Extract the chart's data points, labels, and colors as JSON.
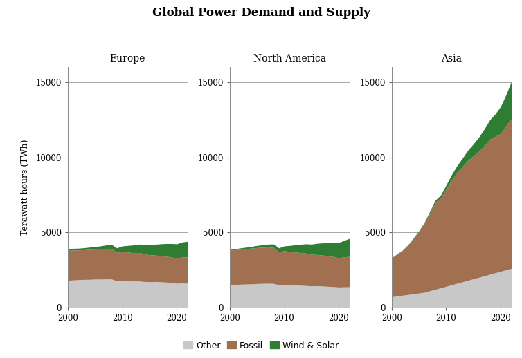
{
  "title": "Global Power Demand and Supply",
  "ylabel": "Terawatt hours (TWh)",
  "regions": [
    "Europe",
    "North America",
    "Asia"
  ],
  "years": [
    2000,
    2001,
    2002,
    2003,
    2004,
    2005,
    2006,
    2007,
    2008,
    2009,
    2010,
    2011,
    2012,
    2013,
    2014,
    2015,
    2016,
    2017,
    2018,
    2019,
    2020,
    2021,
    2022
  ],
  "colors": {
    "Other": "#c8c8c8",
    "Fossil": "#a07050",
    "Wind & Solar": "#2e7d32"
  },
  "data": {
    "Europe": {
      "Other": [
        1800,
        1820,
        1840,
        1860,
        1860,
        1880,
        1880,
        1890,
        1890,
        1760,
        1800,
        1780,
        1760,
        1750,
        1720,
        1700,
        1720,
        1700,
        1680,
        1650,
        1600,
        1620,
        1600
      ],
      "Fossil": [
        2000,
        2000,
        1980,
        1980,
        2000,
        2000,
        2010,
        2030,
        2040,
        1900,
        1920,
        1900,
        1880,
        1900,
        1860,
        1800,
        1760,
        1750,
        1730,
        1700,
        1680,
        1730,
        1750
      ],
      "Wind & Solar": [
        100,
        110,
        120,
        130,
        150,
        170,
        200,
        230,
        270,
        300,
        370,
        440,
        510,
        560,
        610,
        660,
        720,
        780,
        840,
        900,
        950,
        1000,
        1050
      ]
    },
    "North America": {
      "Other": [
        1500,
        1520,
        1540,
        1550,
        1560,
        1580,
        1590,
        1600,
        1590,
        1500,
        1520,
        1500,
        1480,
        1470,
        1450,
        1430,
        1440,
        1420,
        1400,
        1380,
        1350,
        1360,
        1370
      ],
      "Fossil": [
        2300,
        2320,
        2340,
        2360,
        2380,
        2400,
        2410,
        2420,
        2400,
        2200,
        2250,
        2220,
        2200,
        2180,
        2160,
        2100,
        2080,
        2060,
        2040,
        2000,
        1950,
        2000,
        2030
      ],
      "Wind & Solar": [
        50,
        65,
        80,
        95,
        120,
        140,
        165,
        190,
        230,
        260,
        320,
        400,
        480,
        550,
        620,
        680,
        740,
        810,
        880,
        940,
        1020,
        1100,
        1200
      ]
    },
    "Asia": {
      "Other": [
        700,
        750,
        800,
        850,
        900,
        950,
        1000,
        1100,
        1200,
        1300,
        1400,
        1500,
        1600,
        1700,
        1800,
        1900,
        2000,
        2100,
        2200,
        2300,
        2400,
        2500,
        2600
      ],
      "Fossil": [
        2600,
        2800,
        3000,
        3300,
        3700,
        4100,
        4600,
        5200,
        5800,
        6000,
        6500,
        7000,
        7400,
        7700,
        8000,
        8200,
        8400,
        8700,
        9000,
        9100,
        9200,
        9600,
        10000
      ],
      "Wind & Solar": [
        10,
        15,
        20,
        25,
        35,
        50,
        70,
        100,
        140,
        190,
        260,
        350,
        450,
        560,
        680,
        800,
        950,
        1100,
        1300,
        1500,
        1800,
        2100,
        2500
      ]
    }
  },
  "ylim": [
    0,
    16000
  ],
  "yticks": [
    0,
    5000,
    10000,
    15000
  ],
  "xticks": [
    2000,
    2010,
    2020
  ],
  "background_color": "#ffffff",
  "grid_color": "#999999",
  "title_fontsize": 12,
  "label_fontsize": 9,
  "tick_fontsize": 8.5,
  "subtitle_fontsize": 10
}
